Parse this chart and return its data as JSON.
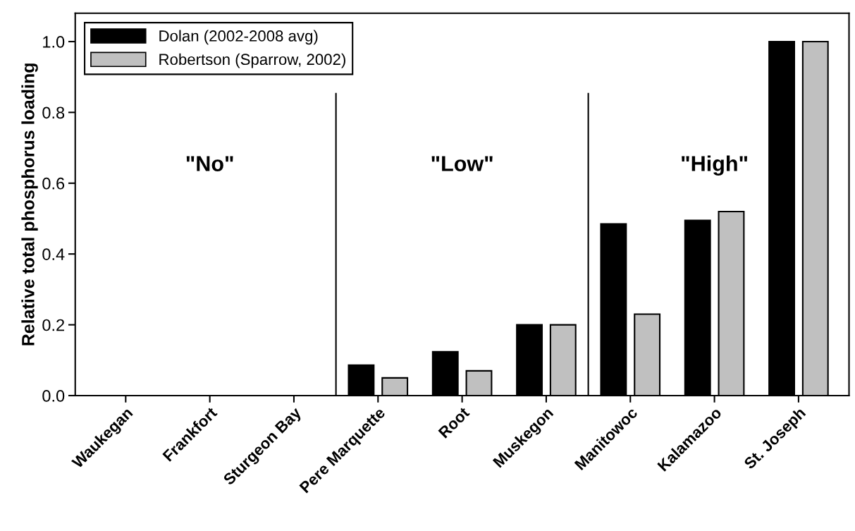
{
  "chart_data": {
    "type": "bar",
    "ylabel": "Relative total phosphorus loading",
    "categories": [
      "Waukegan",
      "Frankfort",
      "Sturgeon Bay",
      "Pere Marquette",
      "Root",
      "Muskegon",
      "Manitowoc",
      "Kalamazoo",
      "St. Joseph"
    ],
    "series": [
      {
        "name": "Dolan (2002-2008 avg)",
        "color": "#000000",
        "values": [
          0,
          0,
          0,
          0.086,
          0.124,
          0.2,
          0.485,
          0.495,
          1.0
        ]
      },
      {
        "name": "Robertson (Sparrow, 2002)",
        "color": "#c0c0c0",
        "values": [
          0,
          0,
          0,
          0.05,
          0.07,
          0.2,
          0.23,
          0.52,
          1.0
        ]
      }
    ],
    "ylim": [
      0,
      1.08
    ],
    "yticks": [
      {
        "value": 0,
        "label": "0.0"
      },
      0.2,
      0.4,
      0.6,
      0.8,
      {
        "value": 1,
        "label": "1.0"
      }
    ],
    "annotations": [
      "\"No\"",
      "\"Low\"",
      "\"High\""
    ],
    "grid": false,
    "legend": "top left"
  }
}
